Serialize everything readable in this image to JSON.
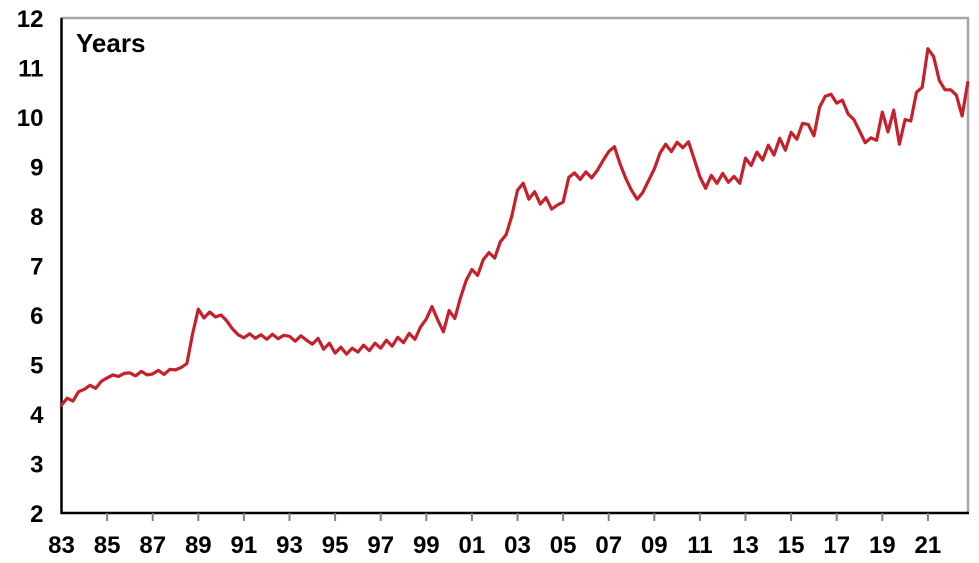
{
  "chart_data": {
    "type": "line",
    "title": "Years",
    "grid": false,
    "y_axis": {
      "min": 2,
      "max": 12,
      "tick_labels": [
        "2",
        "3",
        "4",
        "5",
        "6",
        "7",
        "8",
        "9",
        "10",
        "11",
        "12"
      ]
    },
    "x_axis": {
      "ticks": [
        {
          "label": "83",
          "year": 1983,
          "tick_mark": false
        },
        {
          "label": "85",
          "year": 1985,
          "tick_mark": true
        },
        {
          "label": "87",
          "year": 1987,
          "tick_mark": true
        },
        {
          "label": "89",
          "year": 1989,
          "tick_mark": true
        },
        {
          "label": "91",
          "year": 1991,
          "tick_mark": true
        },
        {
          "label": "93",
          "year": 1993,
          "tick_mark": true
        },
        {
          "label": "95",
          "year": 1995,
          "tick_mark": true
        },
        {
          "label": "97",
          "year": 1997,
          "tick_mark": true
        },
        {
          "label": "99",
          "year": 1999,
          "tick_mark": true
        },
        {
          "label": "01",
          "year": 2001,
          "tick_mark": true
        },
        {
          "label": "03",
          "year": 2003,
          "tick_mark": true
        },
        {
          "label": "05",
          "year": 2005,
          "tick_mark": true
        },
        {
          "label": "07",
          "year": 2007,
          "tick_mark": true
        },
        {
          "label": "09",
          "year": 2009,
          "tick_mark": true
        },
        {
          "label": "11",
          "year": 2011,
          "tick_mark": true
        },
        {
          "label": "13",
          "year": 2013,
          "tick_mark": true
        },
        {
          "label": "15",
          "year": 2015,
          "tick_mark": true
        },
        {
          "label": "17",
          "year": 2017,
          "tick_mark": true
        },
        {
          "label": "19",
          "year": 2019,
          "tick_mark": true
        },
        {
          "label": "21",
          "year": 2021,
          "tick_mark": true
        }
      ]
    },
    "series": {
      "x_start": 1983,
      "x_step": 0.25,
      "x_end": 2022.75,
      "values": [
        4.18,
        4.32,
        4.26,
        4.45,
        4.5,
        4.58,
        4.52,
        4.66,
        4.73,
        4.79,
        4.76,
        4.82,
        4.83,
        4.77,
        4.86,
        4.79,
        4.81,
        4.88,
        4.8,
        4.9,
        4.89,
        4.94,
        5.02,
        5.62,
        6.12,
        5.94,
        6.06,
        5.96,
        6.0,
        5.88,
        5.72,
        5.6,
        5.54,
        5.62,
        5.53,
        5.6,
        5.51,
        5.61,
        5.52,
        5.59,
        5.57,
        5.47,
        5.58,
        5.49,
        5.41,
        5.53,
        5.31,
        5.43,
        5.23,
        5.35,
        5.21,
        5.33,
        5.25,
        5.39,
        5.28,
        5.43,
        5.33,
        5.49,
        5.37,
        5.55,
        5.44,
        5.63,
        5.51,
        5.76,
        5.92,
        6.17,
        5.9,
        5.66,
        6.09,
        5.93,
        6.35,
        6.7,
        6.92,
        6.8,
        7.12,
        7.26,
        7.15,
        7.48,
        7.62,
        8.0,
        8.52,
        8.66,
        8.34,
        8.49,
        8.24,
        8.37,
        8.14,
        8.22,
        8.28,
        8.78,
        8.87,
        8.74,
        8.89,
        8.77,
        8.92,
        9.12,
        9.3,
        9.4,
        9.05,
        8.76,
        8.52,
        8.34,
        8.48,
        8.72,
        8.95,
        9.27,
        9.45,
        9.3,
        9.49,
        9.38,
        9.5,
        9.15,
        8.79,
        8.56,
        8.82,
        8.66,
        8.86,
        8.68,
        8.8,
        8.66,
        9.17,
        9.02,
        9.29,
        9.13,
        9.43,
        9.23,
        9.57,
        9.33,
        9.69,
        9.55,
        9.87,
        9.85,
        9.62,
        10.2,
        10.42,
        10.46,
        10.28,
        10.34,
        10.06,
        9.95,
        9.72,
        9.48,
        9.58,
        9.53,
        10.1,
        9.7,
        10.14,
        9.45,
        9.95,
        9.92,
        10.5,
        10.6,
        11.38,
        11.22,
        10.74,
        10.55,
        10.55,
        10.44,
        10.02,
        10.7
      ]
    },
    "colors": {
      "line": "#C5212C",
      "axis": "#000000",
      "frame": "#A6A6A6",
      "tick": "#7F7F7F",
      "background": "#FFFFFF"
    }
  }
}
